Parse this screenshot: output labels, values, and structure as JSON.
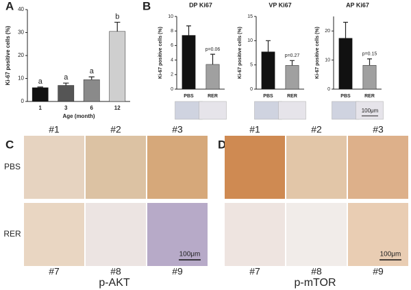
{
  "panel_labels": [
    "A",
    "B",
    "C",
    "D"
  ],
  "chart_data": [
    {
      "type": "bar",
      "ylabel": "Ki-67 positive cells (%)",
      "xlabel": "Age (month)",
      "categories": [
        "1",
        "3",
        "6",
        "12"
      ],
      "values": [
        6,
        7,
        9.5,
        30.5
      ],
      "errors": [
        0.3,
        1,
        1.2,
        4
      ],
      "colors": [
        "#111111",
        "#555555",
        "#8a8a8a",
        "#cfcfcf"
      ],
      "ylim": [
        0,
        40
      ],
      "yticks": [
        0,
        10,
        20,
        30,
        40
      ],
      "annotations": [
        "a",
        "a",
        "a",
        "b"
      ]
    },
    {
      "type": "bar",
      "title": "DP Ki67",
      "ylabel": "Ki-67 positive cells (%)",
      "categories": [
        "PBS",
        "RER"
      ],
      "values": [
        7.4,
        3.4
      ],
      "errors": [
        1.3,
        1.4
      ],
      "colors": [
        "#111111",
        "#a0a0a0"
      ],
      "ylim": [
        0,
        10
      ],
      "yticks": [
        0,
        2,
        4,
        6,
        8,
        10
      ],
      "annotation": "p=0.06"
    },
    {
      "type": "bar",
      "title": "VP Ki67",
      "ylabel": "Ki-67 positive cells (%)",
      "categories": [
        "PBS",
        "RER"
      ],
      "values": [
        7.7,
        4.9
      ],
      "errors": [
        2.3,
        1.0
      ],
      "colors": [
        "#111111",
        "#a0a0a0"
      ],
      "ylim": [
        0,
        15
      ],
      "yticks": [
        0,
        5,
        10,
        15
      ],
      "annotation": "p=0.27"
    },
    {
      "type": "bar",
      "title": "AP Ki67",
      "ylabel": "Ki-67 positive cells (%)",
      "categories": [
        "PBS",
        "RER"
      ],
      "values": [
        17.5,
        8.2
      ],
      "errors": [
        5.5,
        2.2
      ],
      "colors": [
        "#111111",
        "#a0a0a0"
      ],
      "ylim": [
        0,
        25
      ],
      "yticks": [
        0,
        10,
        20
      ],
      "annotation": "p=0.15"
    }
  ],
  "panel_b": {
    "scale_bar": "100μm"
  },
  "panel_c": {
    "columns_top": [
      "#1",
      "#2",
      "#3"
    ],
    "columns_bottom": [
      "#7",
      "#8",
      "#9"
    ],
    "rows": [
      "PBS",
      "RER"
    ],
    "scale_bar": "100μm",
    "caption": "p-AKT"
  },
  "panel_d": {
    "columns_top": [
      "#1",
      "#2",
      "#3"
    ],
    "columns_bottom": [
      "#7",
      "#8",
      "#9"
    ],
    "scale_bar": "100μm",
    "caption": "p-mTOR"
  }
}
